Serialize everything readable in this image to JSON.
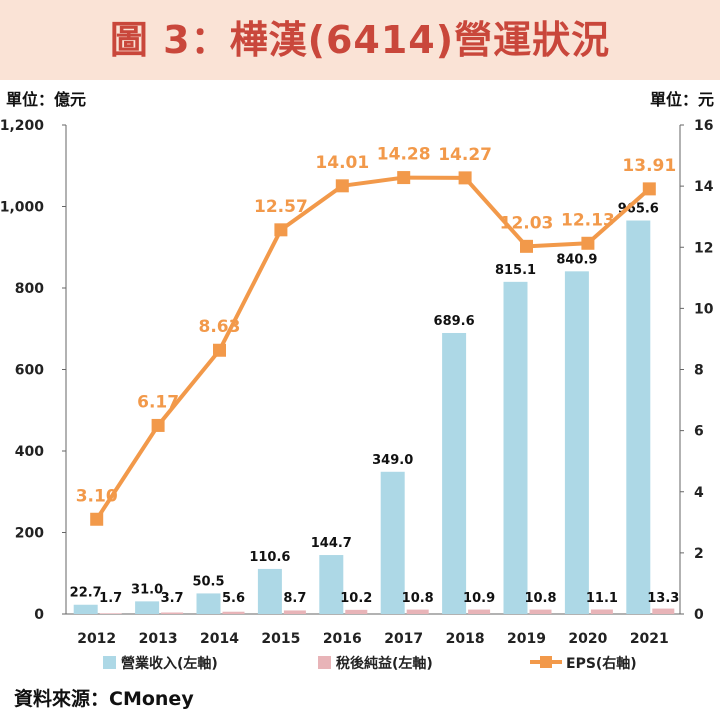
{
  "title": "圖 3：樺漢(6414)營運狀況",
  "left_unit": "單位：億元",
  "right_unit": "單位：元",
  "source": "資料來源：CMoney",
  "colors": {
    "revenue": "#add8e6",
    "net_income": "#e8b4b8",
    "eps": "#f2994a",
    "title_bg": "#fae3d6",
    "title_text": "#c9473b"
  },
  "chart_data": {
    "type": "bar",
    "categories": [
      "2012",
      "2013",
      "2014",
      "2015",
      "2016",
      "2017",
      "2018",
      "2019",
      "2020",
      "2021"
    ],
    "series": [
      {
        "name": "營業收入(左軸)",
        "type": "bar",
        "axis": "left",
        "values": [
          22.7,
          31.0,
          50.5,
          110.6,
          144.7,
          349.0,
          689.6,
          815.1,
          840.9,
          965.6
        ],
        "labels": [
          "22.7",
          "31.0",
          "50.5",
          "110.6",
          "144.7",
          "349.0",
          "689.6",
          "815.1",
          "840.9",
          "965.6"
        ]
      },
      {
        "name": "稅後純益(左軸)",
        "type": "bar",
        "axis": "left",
        "values": [
          1.7,
          3.7,
          5.6,
          8.7,
          10.2,
          10.8,
          10.9,
          10.8,
          11.1,
          13.3
        ],
        "labels": [
          "1.7",
          "3.7",
          "5.6",
          "8.7",
          "10.2",
          "10.8",
          "10.9",
          "10.8",
          "11.1",
          "13.3"
        ]
      },
      {
        "name": "EPS(右軸)",
        "type": "line",
        "axis": "right",
        "values": [
          3.1,
          6.17,
          8.63,
          12.57,
          14.01,
          14.28,
          14.27,
          12.03,
          12.13,
          13.91
        ],
        "labels": [
          "3.10",
          "6.17",
          "8.63",
          "12.57",
          "14.01",
          "14.28",
          "14.27",
          "12.03",
          "12.13",
          "13.91"
        ]
      }
    ],
    "y_left": {
      "range": [
        0,
        1200
      ],
      "ticks": [
        "0",
        "200",
        "400",
        "600",
        "800",
        "1,000",
        "1,200"
      ]
    },
    "y_right": {
      "range": [
        0,
        16
      ],
      "ticks": [
        "0",
        "2",
        "4",
        "6",
        "8",
        "10",
        "12",
        "14",
        "16"
      ]
    },
    "legend_position": "bottom",
    "grid": false
  }
}
